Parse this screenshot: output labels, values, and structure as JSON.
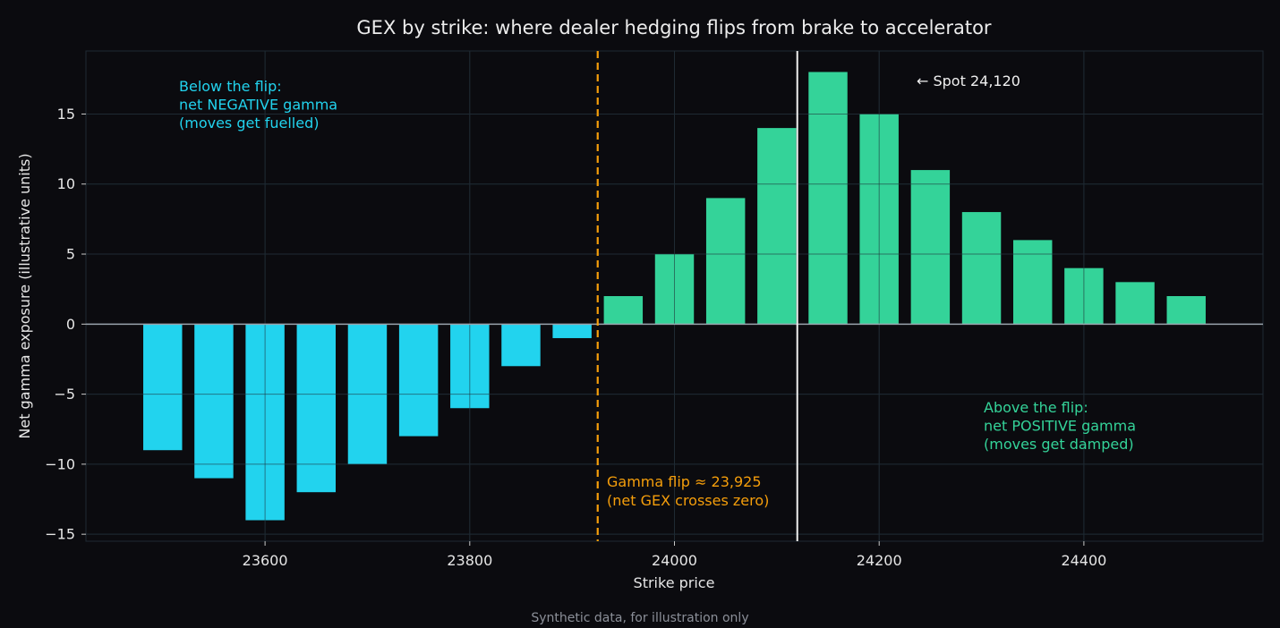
{
  "chart_data": {
    "type": "bar",
    "title": "GEX by strike: where dealer hedging flips from brake to accelerator",
    "xlabel": "Strike price",
    "ylabel": "Net gamma exposure (illustrative units)",
    "footnote": "Synthetic data, for illustration only",
    "xlim": [
      23425,
      24575
    ],
    "ylim": [
      -15.5,
      19.5
    ],
    "xticks": [
      23600,
      23800,
      24000,
      24200,
      24400
    ],
    "xtick_labels": [
      "23600",
      "23800",
      "24000",
      "24200",
      "24400"
    ],
    "yticks": [
      -15,
      -10,
      -5,
      0,
      5,
      10,
      15
    ],
    "ytick_labels": [
      "−15",
      "−10",
      "−5",
      "0",
      "5",
      "10",
      "15"
    ],
    "grid": true,
    "bar_width": 38,
    "x": [
      23500,
      23550,
      23600,
      23650,
      23700,
      23750,
      23800,
      23850,
      23900,
      23950,
      24000,
      24050,
      24100,
      24150,
      24200,
      24250,
      24300,
      24350,
      24400,
      24450,
      24500
    ],
    "values": [
      -9,
      -11,
      -14,
      -12,
      -10,
      -8,
      -6,
      -3,
      -1,
      2,
      5,
      9,
      14,
      18,
      15,
      11,
      8,
      6,
      4,
      3,
      2
    ],
    "colors": {
      "negative": "#22d3ee",
      "positive": "#34d399",
      "flip": "#f59e0b",
      "spot": "#f0f0f0",
      "zero_line": "#9aa3ad",
      "grid": "#1f2a33",
      "background": "#0b0b0f"
    },
    "gamma_flip": 23925,
    "spot": 24120,
    "annotations": {
      "negative": [
        "Below the flip:",
        "net NEGATIVE gamma",
        "(moves get fuelled)"
      ],
      "positive": [
        "Above the flip:",
        "net POSITIVE gamma",
        "(moves get damped)"
      ],
      "flip": [
        "Gamma flip ≈ 23,925",
        "(net GEX crosses zero)"
      ],
      "spot": "← Spot 24,120"
    }
  }
}
